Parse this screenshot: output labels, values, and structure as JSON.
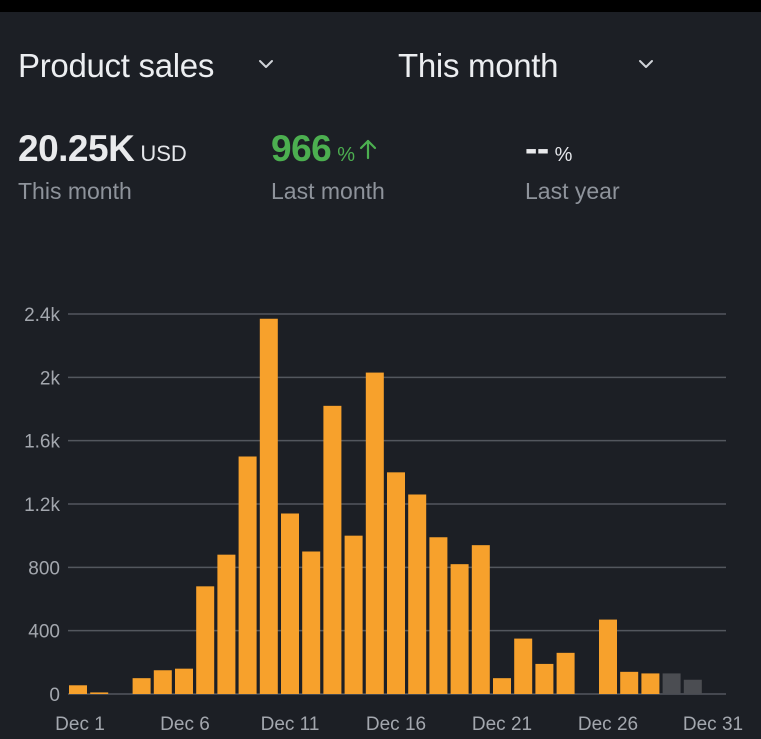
{
  "header": {
    "product_selector": {
      "label": "Product sales",
      "icon": "chevron-down-icon"
    },
    "period_selector": {
      "label": "This month",
      "icon": "chevron-down-icon"
    }
  },
  "stats": {
    "this_month": {
      "value": "20.25K",
      "unit": "USD",
      "caption": "This month"
    },
    "last_month": {
      "value": "966",
      "unit": "%",
      "caption": "Last month",
      "trend": "up",
      "color": "#4caf50"
    },
    "last_year": {
      "value": "--",
      "unit": "%",
      "caption": "Last year"
    }
  },
  "chart_data": {
    "type": "bar",
    "x": [
      "Dec 1",
      "Dec 2",
      "Dec 3",
      "Dec 4",
      "Dec 5",
      "Dec 6",
      "Dec 7",
      "Dec 8",
      "Dec 9",
      "Dec 10",
      "Dec 11",
      "Dec 12",
      "Dec 13",
      "Dec 14",
      "Dec 15",
      "Dec 16",
      "Dec 17",
      "Dec 18",
      "Dec 19",
      "Dec 20",
      "Dec 21",
      "Dec 22",
      "Dec 23",
      "Dec 24",
      "Dec 25",
      "Dec 26",
      "Dec 27",
      "Dec 28",
      "Dec 29",
      "Dec 30"
    ],
    "values": [
      55,
      10,
      0,
      100,
      150,
      160,
      680,
      880,
      1500,
      2370,
      1140,
      900,
      1820,
      1000,
      2030,
      1400,
      1260,
      990,
      820,
      940,
      100,
      350,
      190,
      260,
      0,
      470,
      140,
      130,
      130,
      90
    ],
    "future_from_index": 28,
    "x_tick_labels": [
      "Dec 1",
      "Dec 6",
      "Dec 11",
      "Dec 16",
      "Dec 21",
      "Dec 26",
      "Dec 31"
    ],
    "y_ticks": [
      0,
      400,
      800,
      1200,
      1600,
      2000,
      2400
    ],
    "y_tick_labels": [
      "0",
      "400",
      "800",
      "1.2k",
      "1.6k",
      "2k",
      "2.4k"
    ],
    "ylim": [
      0,
      2400
    ],
    "grid": true,
    "bar_color": "#f7a12c",
    "future_bar_color": "#4b4d52"
  }
}
